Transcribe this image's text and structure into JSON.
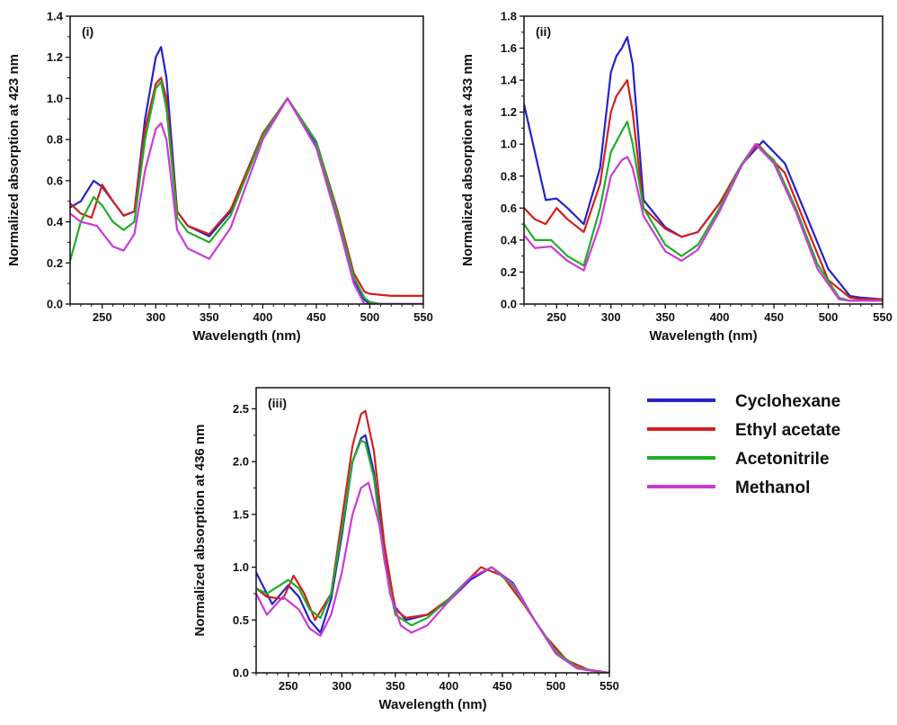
{
  "colors": {
    "Cyclohexane": "#2323c8",
    "Ethyl acetate": "#d2211e",
    "Acetonitrile": "#1fae2a",
    "Methanol": "#cc3ad6"
  },
  "legend": {
    "entries": [
      "Cyclohexane",
      "Ethyl acetate",
      "Acetonitrile",
      "Methanol"
    ]
  },
  "chart_data": [
    {
      "type": "line",
      "panel_label": "(i)",
      "xlabel": "Wavelength (nm)",
      "ylabel": "Normalized absorption at 423 nm",
      "xlim": [
        220,
        550
      ],
      "ylim": [
        0,
        1.4
      ],
      "xticks": [
        250,
        300,
        350,
        400,
        450,
        500,
        550
      ],
      "yticks": [
        0.0,
        0.2,
        0.4,
        0.6,
        0.8,
        1.0,
        1.2,
        1.4
      ],
      "ytick_labels": [
        "0.0",
        "0.2",
        "0.4",
        "0.6",
        "0.8",
        "1.0",
        "1.2",
        "1.4"
      ],
      "series": [
        {
          "name": "Cyclohexane",
          "x": [
            220,
            230,
            242,
            250,
            260,
            270,
            280,
            290,
            300,
            305,
            310,
            320,
            330,
            350,
            370,
            400,
            423,
            450,
            470,
            485,
            495,
            500,
            550
          ],
          "y": [
            0.47,
            0.5,
            0.6,
            0.57,
            0.5,
            0.43,
            0.45,
            0.9,
            1.2,
            1.25,
            1.1,
            0.45,
            0.38,
            0.33,
            0.45,
            0.82,
            1.0,
            0.78,
            0.42,
            0.12,
            0.02,
            0.0,
            0.0
          ]
        },
        {
          "name": "Ethyl acetate",
          "x": [
            220,
            230,
            240,
            250,
            260,
            270,
            280,
            290,
            300,
            305,
            310,
            320,
            330,
            350,
            370,
            400,
            423,
            450,
            470,
            485,
            495,
            500,
            520,
            550
          ],
          "y": [
            0.49,
            0.44,
            0.42,
            0.58,
            0.5,
            0.43,
            0.45,
            0.85,
            1.07,
            1.1,
            1.0,
            0.45,
            0.38,
            0.34,
            0.46,
            0.83,
            1.0,
            0.79,
            0.45,
            0.15,
            0.06,
            0.05,
            0.04,
            0.04
          ]
        },
        {
          "name": "Acetonitrile",
          "x": [
            220,
            230,
            242,
            250,
            260,
            270,
            280,
            290,
            300,
            305,
            310,
            320,
            330,
            350,
            370,
            400,
            423,
            450,
            470,
            485,
            495,
            500,
            510,
            550
          ],
          "y": [
            0.21,
            0.4,
            0.52,
            0.48,
            0.4,
            0.36,
            0.4,
            0.8,
            1.05,
            1.08,
            0.95,
            0.42,
            0.35,
            0.3,
            0.43,
            0.82,
            1.0,
            0.79,
            0.43,
            0.13,
            0.03,
            0.01,
            0.0,
            0.0
          ]
        },
        {
          "name": "Methanol",
          "x": [
            220,
            230,
            245,
            260,
            270,
            280,
            290,
            300,
            305,
            310,
            320,
            330,
            350,
            370,
            400,
            423,
            450,
            470,
            485,
            495,
            550
          ],
          "y": [
            0.44,
            0.4,
            0.38,
            0.28,
            0.26,
            0.34,
            0.65,
            0.85,
            0.88,
            0.8,
            0.36,
            0.27,
            0.22,
            0.37,
            0.8,
            1.0,
            0.76,
            0.4,
            0.1,
            0.0,
            0.0
          ]
        }
      ]
    },
    {
      "type": "line",
      "panel_label": "(ii)",
      "xlabel": "Wavelength (nm)",
      "ylabel": "Normalized absorption at 433 nm",
      "xlim": [
        220,
        550
      ],
      "ylim": [
        0,
        1.8
      ],
      "xticks": [
        250,
        300,
        350,
        400,
        450,
        500,
        550
      ],
      "yticks": [
        0.0,
        0.2,
        0.4,
        0.6,
        0.8,
        1.0,
        1.2,
        1.4,
        1.6,
        1.8
      ],
      "ytick_labels": [
        "0.0",
        "0.2",
        "0.4",
        "0.6",
        "0.8",
        "1.0",
        "1.2",
        "1.4",
        "1.6",
        "1.8"
      ],
      "series": [
        {
          "name": "Cyclohexane",
          "x": [
            220,
            230,
            240,
            250,
            260,
            275,
            290,
            300,
            305,
            310,
            315,
            320,
            330,
            350,
            365,
            380,
            400,
            420,
            440,
            460,
            480,
            500,
            520,
            530,
            550
          ],
          "y": [
            1.25,
            0.95,
            0.65,
            0.66,
            0.6,
            0.5,
            0.85,
            1.45,
            1.55,
            1.6,
            1.67,
            1.5,
            0.65,
            0.48,
            0.42,
            0.45,
            0.63,
            0.87,
            1.02,
            0.88,
            0.55,
            0.22,
            0.05,
            0.04,
            0.03
          ]
        },
        {
          "name": "Ethyl acetate",
          "x": [
            220,
            230,
            240,
            250,
            260,
            275,
            290,
            300,
            305,
            310,
            315,
            320,
            330,
            350,
            365,
            380,
            400,
            420,
            435,
            460,
            480,
            500,
            520,
            530,
            550
          ],
          "y": [
            0.6,
            0.53,
            0.5,
            0.6,
            0.53,
            0.45,
            0.75,
            1.2,
            1.3,
            1.35,
            1.4,
            1.2,
            0.6,
            0.47,
            0.42,
            0.45,
            0.63,
            0.87,
            1.0,
            0.82,
            0.48,
            0.15,
            0.04,
            0.03,
            0.03
          ]
        },
        {
          "name": "Acetonitrile",
          "x": [
            220,
            230,
            245,
            260,
            275,
            290,
            300,
            310,
            315,
            320,
            330,
            350,
            365,
            380,
            400,
            420,
            433,
            450,
            470,
            490,
            510,
            520,
            550
          ],
          "y": [
            0.5,
            0.4,
            0.4,
            0.3,
            0.24,
            0.6,
            0.95,
            1.08,
            1.14,
            1.0,
            0.6,
            0.37,
            0.3,
            0.37,
            0.6,
            0.87,
            1.0,
            0.9,
            0.6,
            0.25,
            0.04,
            0.02,
            0.02
          ]
        },
        {
          "name": "Methanol",
          "x": [
            220,
            230,
            245,
            260,
            275,
            290,
            300,
            310,
            315,
            320,
            330,
            350,
            365,
            380,
            400,
            420,
            433,
            450,
            470,
            490,
            510,
            520,
            550
          ],
          "y": [
            0.43,
            0.35,
            0.36,
            0.27,
            0.21,
            0.5,
            0.8,
            0.9,
            0.92,
            0.85,
            0.55,
            0.33,
            0.27,
            0.34,
            0.58,
            0.86,
            1.0,
            0.88,
            0.58,
            0.22,
            0.03,
            0.02,
            0.02
          ]
        }
      ]
    },
    {
      "type": "line",
      "panel_label": "(iii)",
      "xlabel": "Wavelength (nm)",
      "ylabel": "Normalized absorption at 436 nm",
      "xlim": [
        220,
        550
      ],
      "ylim": [
        0,
        2.7
      ],
      "xticks": [
        250,
        300,
        350,
        400,
        450,
        500,
        550
      ],
      "yticks": [
        0.0,
        0.5,
        1.0,
        1.5,
        2.0,
        2.5
      ],
      "ytick_labels": [
        "0.0",
        "0.5",
        "1.0",
        "1.5",
        "2.0",
        "2.5"
      ],
      "series": [
        {
          "name": "Cyclohexane",
          "x": [
            220,
            235,
            250,
            260,
            270,
            280,
            290,
            300,
            310,
            318,
            322,
            330,
            340,
            350,
            360,
            380,
            400,
            420,
            440,
            460,
            480,
            500,
            520,
            540,
            550
          ],
          "y": [
            0.95,
            0.65,
            0.83,
            0.72,
            0.5,
            0.38,
            0.7,
            1.3,
            2.0,
            2.22,
            2.25,
            1.9,
            1.1,
            0.62,
            0.5,
            0.55,
            0.68,
            0.88,
            1.0,
            0.85,
            0.5,
            0.2,
            0.05,
            0.01,
            0.0
          ]
        },
        {
          "name": "Ethyl acetate",
          "x": [
            220,
            230,
            245,
            255,
            265,
            275,
            290,
            300,
            310,
            318,
            322,
            330,
            340,
            350,
            360,
            380,
            400,
            420,
            430,
            450,
            470,
            490,
            510,
            530,
            550
          ],
          "y": [
            0.8,
            0.72,
            0.7,
            0.92,
            0.75,
            0.5,
            0.75,
            1.45,
            2.15,
            2.45,
            2.48,
            2.1,
            1.2,
            0.6,
            0.52,
            0.55,
            0.7,
            0.9,
            1.0,
            0.92,
            0.65,
            0.35,
            0.12,
            0.03,
            0.0
          ]
        },
        {
          "name": "Acetonitrile",
          "x": [
            220,
            230,
            250,
            260,
            270,
            280,
            290,
            300,
            310,
            318,
            322,
            330,
            340,
            350,
            365,
            380,
            400,
            420,
            440,
            460,
            480,
            500,
            520,
            540,
            550
          ],
          "y": [
            0.8,
            0.75,
            0.88,
            0.8,
            0.6,
            0.52,
            0.75,
            1.35,
            2.0,
            2.2,
            2.18,
            1.85,
            1.05,
            0.55,
            0.45,
            0.52,
            0.7,
            0.9,
            1.0,
            0.82,
            0.5,
            0.2,
            0.05,
            0.01,
            0.0
          ]
        },
        {
          "name": "Methanol",
          "x": [
            220,
            230,
            245,
            260,
            270,
            280,
            290,
            300,
            310,
            318,
            325,
            335,
            345,
            355,
            365,
            380,
            400,
            420,
            440,
            460,
            480,
            500,
            520,
            540,
            550
          ],
          "y": [
            0.75,
            0.55,
            0.72,
            0.6,
            0.42,
            0.35,
            0.55,
            0.95,
            1.5,
            1.75,
            1.8,
            1.4,
            0.75,
            0.45,
            0.38,
            0.45,
            0.68,
            0.9,
            1.0,
            0.84,
            0.5,
            0.18,
            0.04,
            0.01,
            0.0
          ]
        }
      ]
    }
  ]
}
